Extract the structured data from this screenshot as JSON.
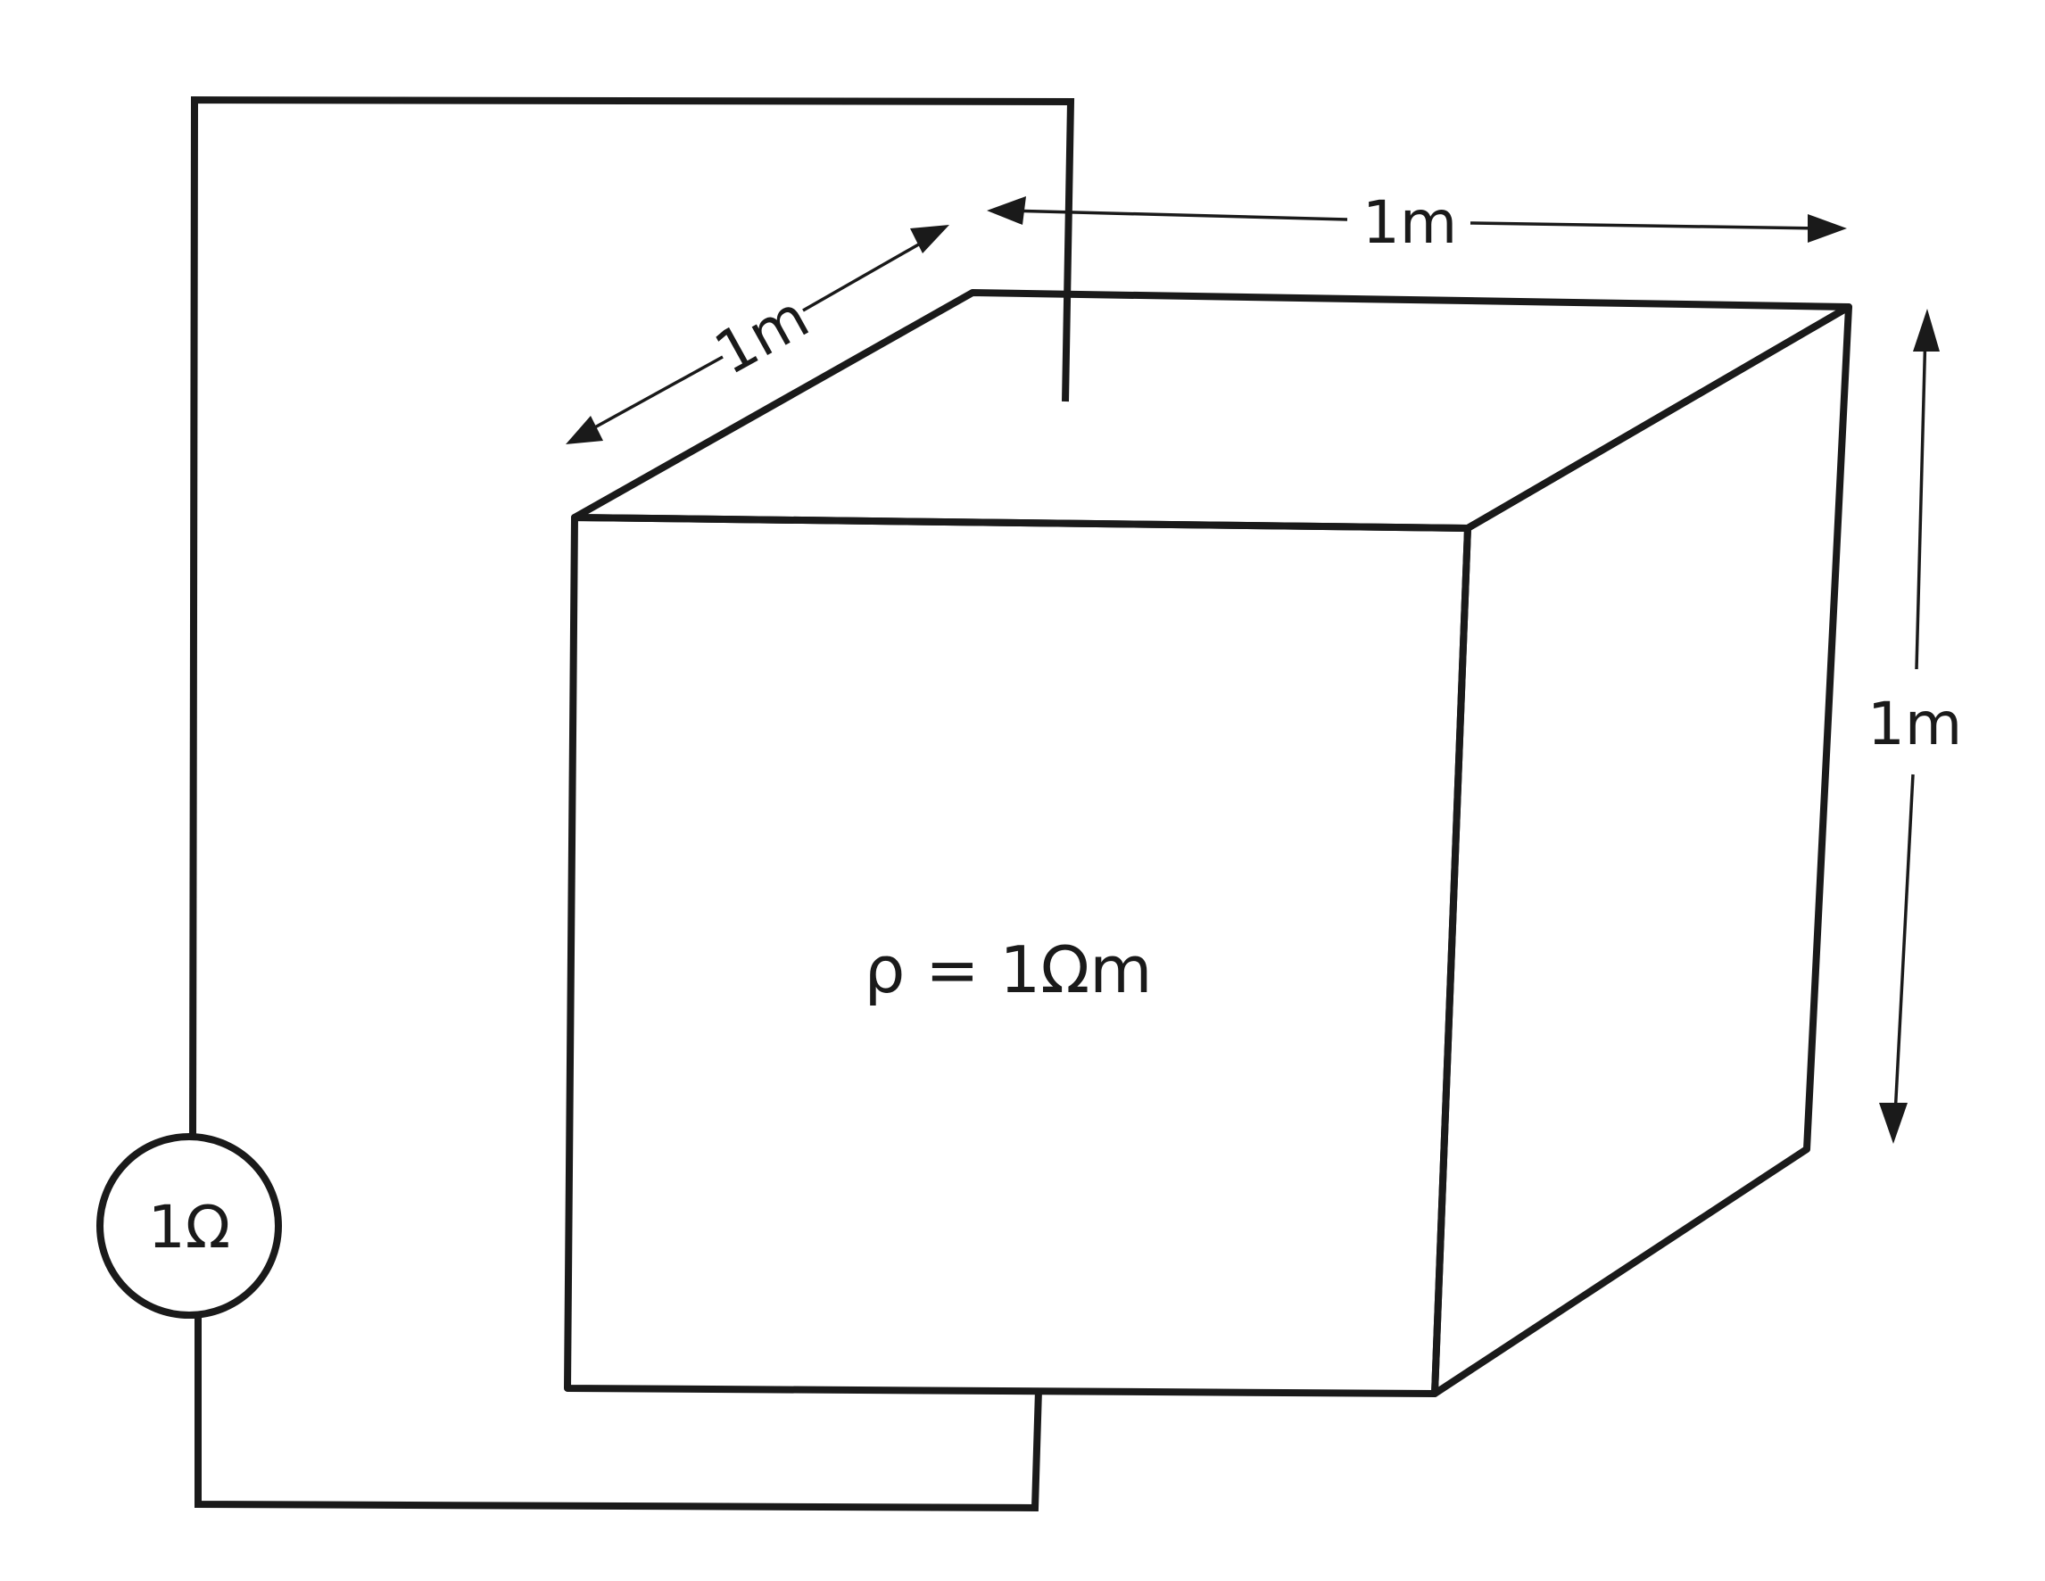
{
  "figure": {
    "resistivity_label": "ρ = 1Ωm",
    "resistor_label": "1Ω",
    "dimension_width_label": "1m",
    "dimension_depth_label": "1m",
    "dimension_height_label": "1m"
  },
  "colors": {
    "line": "#1a1a1a",
    "background": "#ffffff"
  }
}
